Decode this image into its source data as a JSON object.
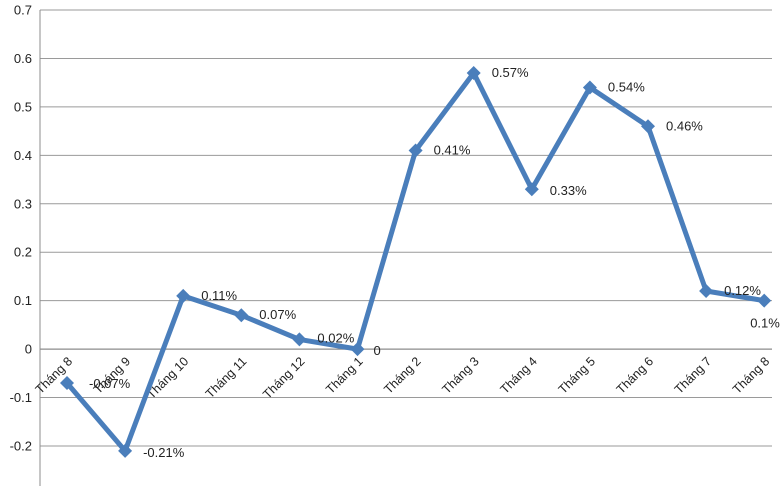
{
  "chart_data": {
    "type": "line",
    "title": "",
    "xlabel": "",
    "ylabel": "",
    "ylim": [
      -0.2,
      0.7
    ],
    "yticks": [
      "-0.2",
      "-0.1",
      "0",
      "0.1",
      "0.2",
      "0.3",
      "0.4",
      "0.5",
      "0.6",
      "0.7"
    ],
    "ytick_values": [
      -0.2,
      -0.1,
      0,
      0.1,
      0.2,
      0.3,
      0.4,
      0.5,
      0.6,
      0.7
    ],
    "grid": true,
    "legend": "none",
    "categories": [
      "Tháng 8",
      "Tháng 9",
      "Tháng 10",
      "Tháng 11",
      "Tháng 12",
      "Tháng 1",
      "Tháng 2",
      "Tháng 3",
      "Tháng 4",
      "Tháng 5",
      "Tháng 6",
      "Tháng 7",
      "Tháng 8"
    ],
    "series": [
      {
        "values": [
          -0.07,
          -0.21,
          0.11,
          0.07,
          0.02,
          0,
          0.41,
          0.57,
          0.33,
          0.54,
          0.46,
          0.12,
          0.1
        ],
        "data_labels": [
          "-0.07%",
          "-0.21%",
          "0.11%",
          "0.07%",
          "0.02%",
          "0",
          "0.41%",
          "0.57%",
          "0.33%",
          "0.54%",
          "0.46%",
          "0.12%",
          "0.1%"
        ]
      }
    ],
    "colors": {
      "line": "#4a7ebb",
      "grid": "#9a9a9a",
      "axis": "#8c8c8c"
    }
  }
}
